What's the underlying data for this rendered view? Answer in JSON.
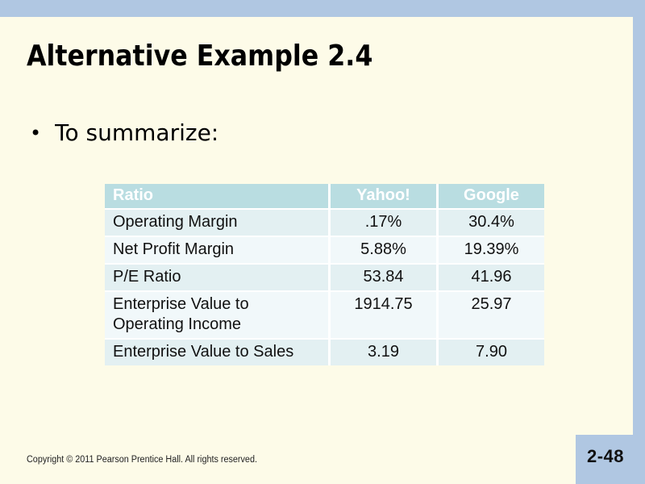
{
  "slide": {
    "title": "Alternative Example 2.4",
    "bullet_glyph": "•",
    "bullet_text": "To summarize:",
    "footer": {
      "copyright": "Copyright © 2011 Pearson Prentice Hall. All rights reserved.",
      "page_number": "2-48"
    }
  },
  "summary_table": {
    "headers": {
      "ratio": "Ratio",
      "yahoo": "Yahoo!",
      "google": "Google"
    },
    "rows": [
      {
        "ratio": "Operating Margin",
        "yahoo": ".17%",
        "google": "30.4%"
      },
      {
        "ratio": "Net Profit Margin",
        "yahoo": "5.88%",
        "google": "19.39%"
      },
      {
        "ratio": "P/E Ratio",
        "yahoo": "53.84",
        "google": "41.96"
      },
      {
        "ratio": "Enterprise Value to Operating Income",
        "yahoo": "1914.75",
        "google": "25.97"
      },
      {
        "ratio": "Enterprise Value to Sales",
        "yahoo": "3.19",
        "google": "7.90"
      }
    ]
  },
  "colors": {
    "accent_blue": "#B0C7E2",
    "background_cream": "#FDFBE8",
    "table_header_bg": "#B9DDE1",
    "table_row_odd": "#E3F0F2",
    "table_row_even": "#F1F8FA",
    "cell_divider": "#FFFFFF",
    "header_text": "#FFFFFF",
    "body_text": "#111111"
  }
}
